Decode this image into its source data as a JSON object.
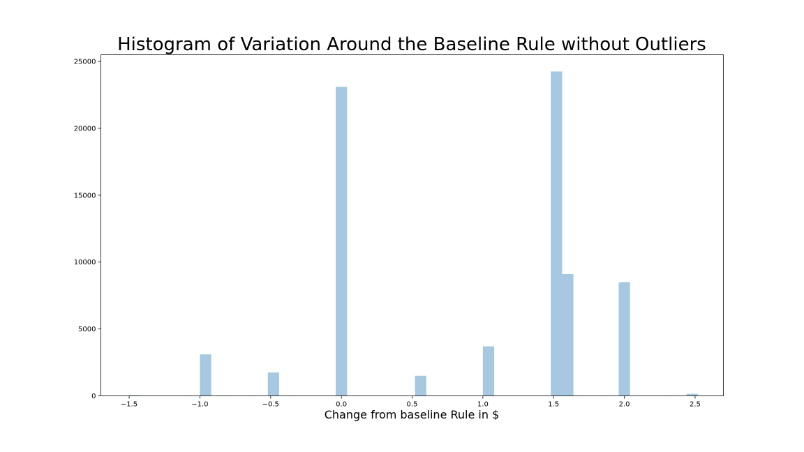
{
  "chart_data": {
    "type": "bar",
    "title": "Histogram of Variation Around the Baseline Rule without Outliers",
    "xlabel": "Change from baseline Rule in $",
    "ylabel": "",
    "xlim": [
      -1.7,
      2.7
    ],
    "ylim": [
      0,
      25500
    ],
    "xticks": [
      -1.5,
      -1.0,
      -0.5,
      0.0,
      0.5,
      1.0,
      1.5,
      2.0,
      2.5
    ],
    "xtick_labels": [
      "−1.5",
      "−1.0",
      "−0.5",
      "0.0",
      "0.5",
      "1.0",
      "1.5",
      "2.0",
      "2.5"
    ],
    "yticks": [
      0,
      5000,
      10000,
      15000,
      20000,
      25000
    ],
    "ytick_labels": [
      "0",
      "5000",
      "10000",
      "15000",
      "20000",
      "25000"
    ],
    "bar_color": "#a6c8e0",
    "bars": [
      {
        "x0": -1.5,
        "x1": -1.42,
        "value": 50
      },
      {
        "x0": -1.0,
        "x1": -0.92,
        "value": 3100
      },
      {
        "x0": -0.52,
        "x1": -0.44,
        "value": 1750
      },
      {
        "x0": -0.04,
        "x1": 0.04,
        "value": 23100
      },
      {
        "x0": 0.52,
        "x1": 0.6,
        "value": 1500
      },
      {
        "x0": 1.0,
        "x1": 1.08,
        "value": 3700
      },
      {
        "x0": 1.48,
        "x1": 1.56,
        "value": 24250
      },
      {
        "x0": 1.56,
        "x1": 1.64,
        "value": 9100
      },
      {
        "x0": 1.96,
        "x1": 2.04,
        "value": 8500
      },
      {
        "x0": 2.44,
        "x1": 2.52,
        "value": 150
      }
    ]
  }
}
